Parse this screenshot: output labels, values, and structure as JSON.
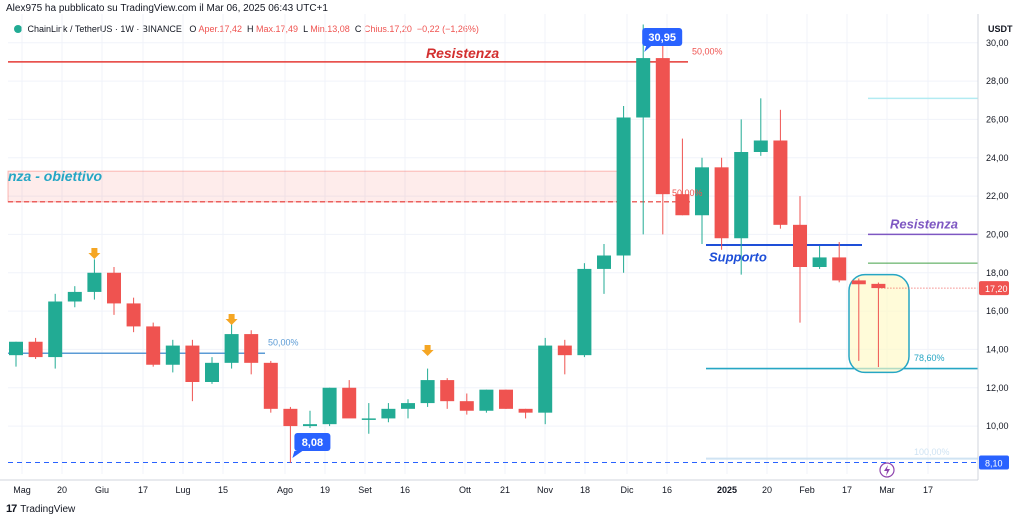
{
  "header": {
    "published_by": "Alex975 ha pubblicato su TradingView.com il Mar 06, 2025 06:43 UTC+1"
  },
  "legend": {
    "symbol": "ChainLink / TetherUS · 1W · BINANCE",
    "open_label": "O",
    "open_value": "Aper.17,42",
    "high_label": "H",
    "high_value": "Max.17,49",
    "low_label": "L",
    "low_value": "Min.13,08",
    "close_label": "C",
    "close_value": "Chius.17,20",
    "change": "−0,22 (−1,26%)"
  },
  "footer": {
    "brand": "TradingView",
    "logo": "17"
  },
  "colors": {
    "up": "#22ab94",
    "down": "#ef5350",
    "grid": "#f0f3fa",
    "resistance": "#e53935",
    "support": "#1e4fd8",
    "fib": "#26a6c4",
    "fib_blue": "#2962ff",
    "purple": "#7e57c2",
    "orange": "#f5a623"
  },
  "chart_data": {
    "type": "candlestick",
    "currency": "USDT",
    "yticks": [
      "10,00",
      "12,00",
      "14,00",
      "16,00",
      "18,00",
      "20,00",
      "22,00",
      "24,00",
      "26,00",
      "28,00",
      "30,00"
    ],
    "yrange": [
      7.5,
      31.5
    ],
    "xticks": [
      "Mag",
      "20",
      "Giu",
      "17",
      "Lug",
      "15",
      "Ago",
      "19",
      "Set",
      "16",
      "Ott",
      "21",
      "Nov",
      "18",
      "Dic",
      "16",
      "2025",
      "20",
      "Feb",
      "17",
      "Mar",
      "17"
    ],
    "price_label": "17,20",
    "grid": true,
    "candles": [
      {
        "o": 13.7,
        "h": 14.4,
        "l": 13.1,
        "c": 14.4
      },
      {
        "o": 14.4,
        "h": 14.6,
        "l": 13.5,
        "c": 13.6
      },
      {
        "o": 13.6,
        "h": 16.9,
        "l": 13.0,
        "c": 16.5
      },
      {
        "o": 16.5,
        "h": 17.3,
        "l": 16.2,
        "c": 17.0
      },
      {
        "o": 17.0,
        "h": 18.7,
        "l": 16.6,
        "c": 18.0
      },
      {
        "o": 18.0,
        "h": 18.3,
        "l": 15.8,
        "c": 16.4
      },
      {
        "o": 16.4,
        "h": 16.7,
        "l": 14.9,
        "c": 15.2
      },
      {
        "o": 15.2,
        "h": 15.4,
        "l": 13.1,
        "c": 13.2
      },
      {
        "o": 13.2,
        "h": 14.5,
        "l": 12.8,
        "c": 14.2
      },
      {
        "o": 14.2,
        "h": 14.5,
        "l": 11.3,
        "c": 12.3
      },
      {
        "o": 12.3,
        "h": 13.6,
        "l": 12.2,
        "c": 13.3
      },
      {
        "o": 13.3,
        "h": 15.3,
        "l": 13.0,
        "c": 14.8
      },
      {
        "o": 14.8,
        "h": 15.0,
        "l": 12.7,
        "c": 13.3
      },
      {
        "o": 13.3,
        "h": 13.4,
        "l": 10.7,
        "c": 10.9
      },
      {
        "o": 10.9,
        "h": 11.0,
        "l": 8.08,
        "c": 10.0
      },
      {
        "o": 10.0,
        "h": 10.8,
        "l": 9.9,
        "c": 10.1
      },
      {
        "o": 10.1,
        "h": 12.0,
        "l": 10.0,
        "c": 12.0
      },
      {
        "o": 12.0,
        "h": 12.4,
        "l": 10.5,
        "c": 10.4
      },
      {
        "o": 10.4,
        "h": 11.2,
        "l": 9.6,
        "c": 10.4
      },
      {
        "o": 10.4,
        "h": 11.2,
        "l": 10.2,
        "c": 10.9
      },
      {
        "o": 10.9,
        "h": 11.4,
        "l": 10.4,
        "c": 11.2
      },
      {
        "o": 11.2,
        "h": 13.0,
        "l": 11.0,
        "c": 12.4
      },
      {
        "o": 12.4,
        "h": 12.5,
        "l": 10.9,
        "c": 11.3
      },
      {
        "o": 11.3,
        "h": 11.7,
        "l": 10.6,
        "c": 10.8
      },
      {
        "o": 10.8,
        "h": 11.9,
        "l": 10.7,
        "c": 11.9
      },
      {
        "o": 11.9,
        "h": 11.9,
        "l": 10.9,
        "c": 10.9
      },
      {
        "o": 10.9,
        "h": 10.9,
        "l": 10.4,
        "c": 10.7
      },
      {
        "o": 10.7,
        "h": 14.6,
        "l": 10.1,
        "c": 14.2
      },
      {
        "o": 14.2,
        "h": 14.5,
        "l": 12.7,
        "c": 13.7
      },
      {
        "o": 13.7,
        "h": 18.5,
        "l": 13.6,
        "c": 18.2
      },
      {
        "o": 18.2,
        "h": 19.5,
        "l": 16.9,
        "c": 18.9
      },
      {
        "o": 18.9,
        "h": 26.7,
        "l": 18.0,
        "c": 26.1
      },
      {
        "o": 26.1,
        "h": 30.95,
        "l": 20.0,
        "c": 29.2
      },
      {
        "o": 29.2,
        "h": 30.0,
        "l": 20.0,
        "c": 22.1
      },
      {
        "o": 22.1,
        "h": 25.0,
        "l": 21.0,
        "c": 21.0
      },
      {
        "o": 21.0,
        "h": 24.0,
        "l": 19.5,
        "c": 23.5
      },
      {
        "o": 23.5,
        "h": 24.0,
        "l": 19.2,
        "c": 19.8
      },
      {
        "o": 19.8,
        "h": 26.0,
        "l": 17.9,
        "c": 24.3
      },
      {
        "o": 24.3,
        "h": 27.1,
        "l": 24.1,
        "c": 24.9
      },
      {
        "o": 24.9,
        "h": 26.5,
        "l": 20.3,
        "c": 20.5
      },
      {
        "o": 20.5,
        "h": 22.0,
        "l": 15.4,
        "c": 18.3
      },
      {
        "o": 18.3,
        "h": 19.4,
        "l": 18.2,
        "c": 18.8
      },
      {
        "o": 18.8,
        "h": 19.6,
        "l": 17.5,
        "c": 17.6
      },
      {
        "o": 17.6,
        "h": 17.7,
        "l": 13.4,
        "c": 17.4
      },
      {
        "o": 17.42,
        "h": 17.49,
        "l": 13.08,
        "c": 17.2
      }
    ],
    "annotations": {
      "resistance_top": "Resistenza",
      "resistance_zone": "nza - obiettivo",
      "support": "Supporto",
      "resistance_right": "Resistenza",
      "peak_label": "30,95",
      "low_label": "8,08",
      "fib_50_left": "50,00%",
      "fib_50_top": "50,00%",
      "fib_50_mid": "50,00%",
      "fib_786": "78,60%",
      "fib_100": "100,00%",
      "level_810": "8,10"
    }
  }
}
